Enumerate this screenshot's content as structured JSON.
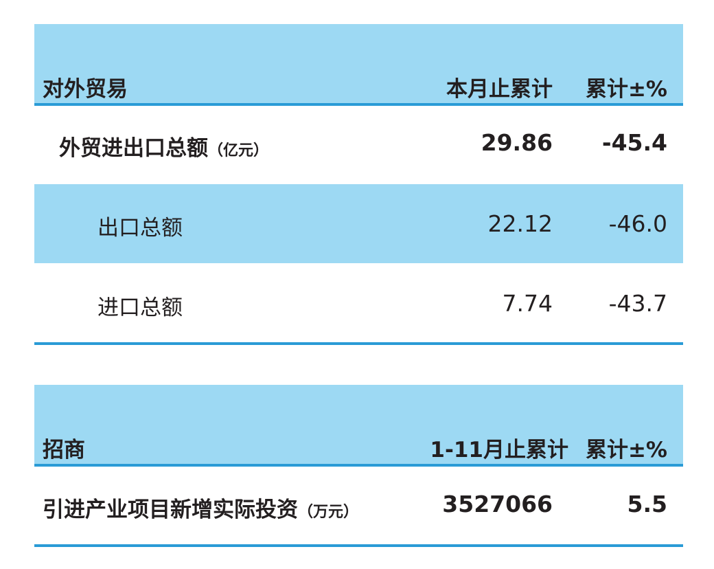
{
  "trade": {
    "title": "对外贸易",
    "col_current": "本月止累计",
    "col_change": "累计±%",
    "rows": [
      {
        "label": "外贸进出口总额",
        "unit": "（亿元）",
        "value": "29.86",
        "change": "-45.4"
      },
      {
        "label": "出口总额",
        "value": "22.12",
        "change": "-46.0"
      },
      {
        "label": "进口总额",
        "value": "7.74",
        "change": "-43.7"
      }
    ]
  },
  "investment": {
    "title": "招商",
    "col_current": "1-11月止累计",
    "col_change": "累计±%",
    "rows": [
      {
        "label": "引进产业项目新增实际投资",
        "unit": "（万元）",
        "value": "3527066",
        "change": "5.5"
      }
    ]
  },
  "colors": {
    "band": "#9dd9f3",
    "rule": "#2a9bd6"
  }
}
